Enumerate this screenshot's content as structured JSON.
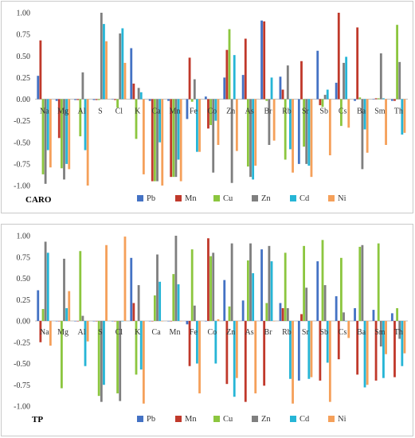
{
  "chart_data": [
    {
      "type": "bar",
      "title": "CARO",
      "ylim": [
        -1.0,
        1.0
      ],
      "yticks": [
        "1.00",
        "0.75",
        "0.50",
        "0.25",
        "0.00",
        "-0.25",
        "-0.50",
        "-0.75",
        "-1.00"
      ],
      "grid": false,
      "legend_position": "bottom",
      "categories": [
        "Na",
        "Mg",
        "Al",
        "S",
        "Cl",
        "K",
        "Ca",
        "Mn",
        "Fe",
        "Co",
        "Zn",
        "As",
        "Br",
        "Rb",
        "Sr",
        "Sb",
        "Cs",
        "Ba",
        "Sm",
        "Th"
      ],
      "series": [
        {
          "name": "Pb",
          "color": "#4472c4",
          "values": [
            0.27,
            -0.02,
            -0.01,
            -0.01,
            0.0,
            0.59,
            -0.02,
            -0.02,
            -0.23,
            0.03,
            0.25,
            0.28,
            0.91,
            0.26,
            -0.75,
            0.56,
            0.19,
            -0.02,
            0.0,
            -0.02
          ]
        },
        {
          "name": "Mn",
          "color": "#c0392b",
          "values": [
            0.68,
            -0.45,
            -0.01,
            -0.01,
            -0.01,
            0.18,
            -0.95,
            -0.9,
            0.48,
            -0.34,
            0.57,
            0.7,
            0.9,
            0.11,
            0.44,
            -0.07,
            1.0,
            0.83,
            0.01,
            -0.02
          ]
        },
        {
          "name": "Cu",
          "color": "#8cc63f",
          "values": [
            -0.87,
            -0.8,
            -0.43,
            -0.01,
            -0.1,
            -0.46,
            -0.95,
            -0.9,
            -0.03,
            -0.3,
            0.81,
            -0.78,
            -0.02,
            -0.7,
            -0.55,
            -0.09,
            -0.31,
            0.02,
            0.01,
            0.86
          ]
        },
        {
          "name": "Zn",
          "color": "#7f7f7f",
          "values": [
            -0.98,
            -0.93,
            0.31,
            1.0,
            0.76,
            0.13,
            -0.95,
            -0.9,
            0.23,
            -0.85,
            -0.97,
            -0.9,
            -0.53,
            0.39,
            -0.75,
            0.05,
            0.42,
            -0.81,
            0.53,
            0.43
          ]
        },
        {
          "name": "Cd",
          "color": "#26b5d6",
          "values": [
            -0.59,
            -0.75,
            -0.59,
            0.87,
            0.82,
            0.08,
            -0.5,
            -0.7,
            -0.61,
            -0.25,
            0.51,
            -0.93,
            0.25,
            -0.58,
            -0.77,
            0.11,
            0.49,
            -0.35,
            0.01,
            -0.41
          ]
        },
        {
          "name": "Ni",
          "color": "#f5a05a",
          "values": [
            -0.79,
            -0.81,
            -1.0,
            0.67,
            0.42,
            -0.87,
            -1.0,
            -0.95,
            -0.61,
            -0.53,
            -0.6,
            -0.77,
            -0.48,
            -0.85,
            -0.9,
            -0.65,
            -0.33,
            -0.62,
            -0.53,
            -0.39
          ]
        }
      ]
    },
    {
      "type": "bar",
      "title": "TP",
      "ylim": [
        -1.0,
        1.0
      ],
      "yticks": [
        "1.00",
        "0.75",
        "0.50",
        "0.25",
        "0.00",
        "-0.25",
        "-0.50",
        "-0.75",
        "-1.00"
      ],
      "grid": false,
      "legend_position": "bottom",
      "categories": [
        "Na",
        "Mg",
        "Al",
        "S",
        "Cl",
        "K",
        "Ca",
        "Mn",
        "Fe",
        "Co",
        "Zn",
        "As",
        "Br",
        "Rb",
        "Sr",
        "Sb",
        "Cs",
        "Ba",
        "Sm",
        "Th"
      ],
      "series": [
        {
          "name": "Pb",
          "color": "#4472c4",
          "values": [
            0.36,
            0.0,
            0.0,
            0.0,
            0.0,
            0.74,
            0.0,
            0.0,
            -0.04,
            0.0,
            0.48,
            0.24,
            0.84,
            0.21,
            -0.7,
            0.7,
            0.29,
            0.15,
            0.13,
            0.09
          ]
        },
        {
          "name": "Mn",
          "color": "#c0392b",
          "values": [
            -0.25,
            0.0,
            0.0,
            0.0,
            0.0,
            0.21,
            0.0,
            0.0,
            -0.53,
            0.97,
            -0.74,
            -0.95,
            -0.76,
            0.15,
            0.08,
            -0.7,
            -0.45,
            -0.63,
            -0.7,
            -0.66
          ]
        },
        {
          "name": "Cu",
          "color": "#8cc63f",
          "values": [
            0.14,
            -0.79,
            0.82,
            -0.88,
            -0.85,
            -0.63,
            0.3,
            0.55,
            0.84,
            0.76,
            0.17,
            0.71,
            0.21,
            0.8,
            0.88,
            0.95,
            0.74,
            0.87,
            0.91,
            0.15
          ]
        },
        {
          "name": "Zn",
          "color": "#7f7f7f",
          "values": [
            0.93,
            0.73,
            0.06,
            -0.95,
            -0.94,
            0.42,
            0.78,
            1.0,
            0.18,
            0.8,
            0.91,
            0.91,
            0.88,
            0.15,
            0.39,
            0.42,
            0.1,
            0.89,
            -0.3,
            -0.21
          ]
        },
        {
          "name": "Cd",
          "color": "#26b5d6",
          "values": [
            0.8,
            0.15,
            -0.53,
            -0.75,
            0.0,
            -0.57,
            0.46,
            0.43,
            -0.5,
            -0.5,
            -0.89,
            0.56,
            0.7,
            -0.68,
            -0.68,
            -0.49,
            0.0,
            -0.78,
            -0.67,
            -0.53
          ]
        },
        {
          "name": "Ni",
          "color": "#f5a05a",
          "values": [
            -0.29,
            0.35,
            -0.24,
            0.89,
            0.99,
            -0.97,
            0.0,
            0.0,
            -0.85,
            0.02,
            -0.67,
            -0.85,
            0.0,
            -0.97,
            -0.66,
            -0.95,
            -0.2,
            -0.75,
            -0.39,
            -0.38
          ]
        }
      ]
    }
  ]
}
